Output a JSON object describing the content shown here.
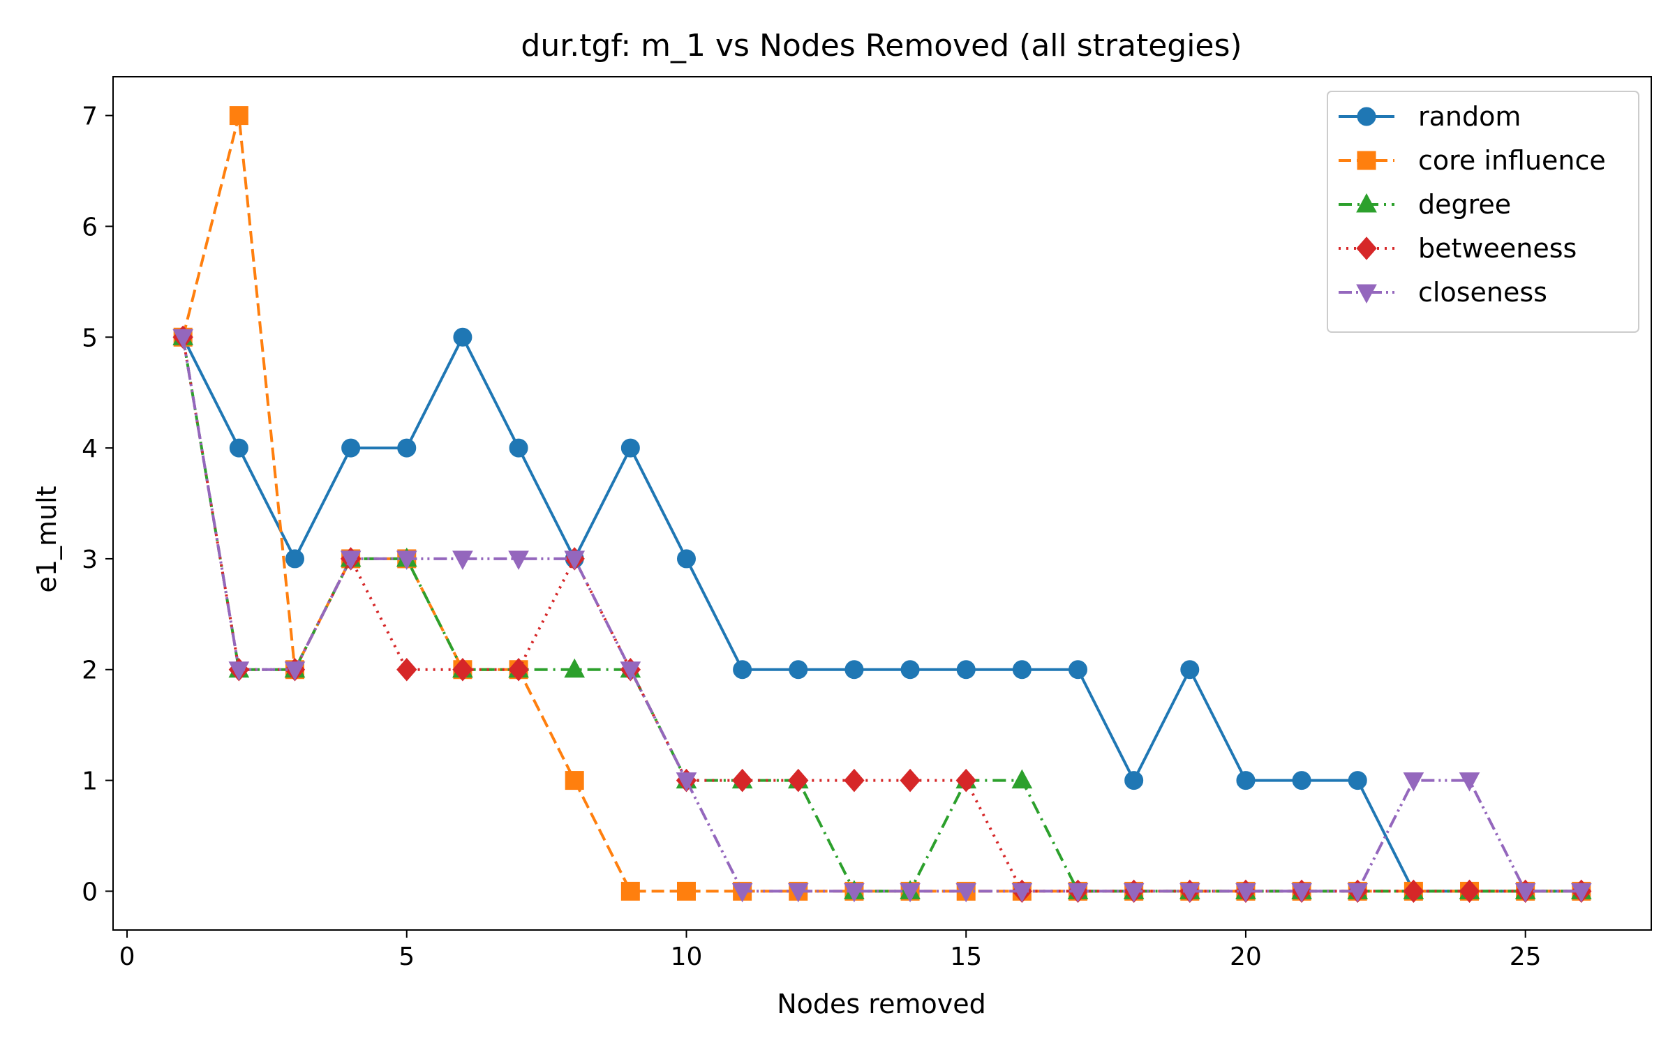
{
  "chart_data": {
    "type": "line",
    "title": "dur.tgf: m_1 vs Nodes Removed (all strategies)",
    "xlabel": "Nodes removed",
    "ylabel": "e1_mult",
    "xlim": [
      -0.25,
      27.25
    ],
    "ylim": [
      -0.35,
      7.35
    ],
    "xticks": [
      0,
      5,
      10,
      15,
      20,
      25
    ],
    "yticks": [
      0,
      1,
      2,
      3,
      4,
      5,
      6,
      7
    ],
    "grid": false,
    "legend_position": "top-right",
    "x": [
      1,
      2,
      3,
      4,
      5,
      6,
      7,
      8,
      9,
      10,
      11,
      12,
      13,
      14,
      15,
      16,
      17,
      18,
      19,
      20,
      21,
      22,
      23,
      24,
      25,
      26
    ],
    "series": [
      {
        "name": "random",
        "color": "#1f77b4",
        "line_style": "solid",
        "marker": "circle",
        "values": [
          5,
          4,
          3,
          4,
          4,
          5,
          4,
          3,
          4,
          3,
          2,
          2,
          2,
          2,
          2,
          2,
          2,
          1,
          2,
          1,
          1,
          1,
          0,
          0,
          0,
          0
        ]
      },
      {
        "name": "core influence",
        "color": "#ff7f0e",
        "line_style": "dashed",
        "marker": "square",
        "values": [
          5,
          7,
          2,
          3,
          3,
          2,
          2,
          1,
          0,
          0,
          0,
          0,
          0,
          0,
          0,
          0,
          0,
          0,
          0,
          0,
          0,
          0,
          0,
          0,
          0,
          0
        ]
      },
      {
        "name": "degree",
        "color": "#2ca02c",
        "line_style": "dashdot",
        "marker": "triangle-up",
        "values": [
          5,
          2,
          2,
          3,
          3,
          2,
          2,
          2,
          2,
          1,
          1,
          1,
          0,
          0,
          1,
          1,
          0,
          0,
          0,
          0,
          0,
          0,
          0,
          0,
          0,
          0
        ]
      },
      {
        "name": "betweeness",
        "color": "#d62728",
        "line_style": "dotted",
        "marker": "diamond",
        "values": [
          5,
          2,
          2,
          3,
          2,
          2,
          2,
          3,
          2,
          1,
          1,
          1,
          1,
          1,
          1,
          0,
          0,
          0,
          0,
          0,
          0,
          0,
          0,
          0,
          0,
          0
        ]
      },
      {
        "name": "closeness",
        "color": "#9467bd",
        "line_style": "dashdotdot",
        "marker": "triangle-down",
        "values": [
          5,
          2,
          2,
          3,
          3,
          3,
          3,
          3,
          2,
          1,
          0,
          0,
          0,
          0,
          0,
          0,
          0,
          0,
          0,
          0,
          0,
          0,
          1,
          1,
          0,
          0
        ]
      }
    ]
  }
}
